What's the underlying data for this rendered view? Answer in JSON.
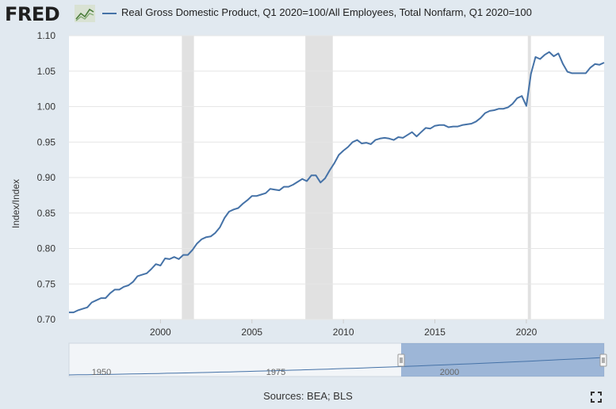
{
  "header": {
    "logo_text": "FRED",
    "legend_label": "Real Gross Domestic Product, Q1 2020=100/All Employees, Total Nonfarm, Q1 2020=100"
  },
  "footer": {
    "sources": "Sources: BEA; BLS"
  },
  "icons": {
    "logo": "fred-chart-icon",
    "fullscreen": "fullscreen-icon"
  },
  "colors": {
    "series": "#4572a7",
    "recession": "#e1e1e1",
    "background": "#e1e9f0",
    "navigator_fill": "#6f93c4"
  },
  "chart_data": {
    "type": "line",
    "title": "Real Gross Domestic Product, Q1 2020=100/All Employees, Total Nonfarm, Q1 2020=100",
    "xlabel": "",
    "ylabel": "Index/Index",
    "xlim": [
      1995,
      2024.25
    ],
    "ylim": [
      0.7,
      1.1
    ],
    "x_ticks": [
      "2000",
      "2005",
      "2010",
      "2015",
      "2020"
    ],
    "y_ticks": [
      "0.70",
      "0.75",
      "0.80",
      "0.85",
      "0.90",
      "0.95",
      "1.00",
      "1.05",
      "1.10"
    ],
    "recessions": [
      [
        2001.17,
        2001.83
      ],
      [
        2007.92,
        2009.42
      ],
      [
        2020.08,
        2020.25
      ]
    ],
    "series": [
      {
        "name": "Real Gross Domestic Product, Q1 2020=100/All Employees, Total Nonfarm, Q1 2020=100",
        "x": [
          1995.0,
          1995.25,
          1995.5,
          1995.75,
          1996.0,
          1996.25,
          1996.5,
          1996.75,
          1997.0,
          1997.25,
          1997.5,
          1997.75,
          1998.0,
          1998.25,
          1998.5,
          1998.75,
          1999.0,
          1999.25,
          1999.5,
          1999.75,
          2000.0,
          2000.25,
          2000.5,
          2000.75,
          2001.0,
          2001.25,
          2001.5,
          2001.75,
          2002.0,
          2002.25,
          2002.5,
          2002.75,
          2003.0,
          2003.25,
          2003.5,
          2003.75,
          2004.0,
          2004.25,
          2004.5,
          2004.75,
          2005.0,
          2005.25,
          2005.5,
          2005.75,
          2006.0,
          2006.25,
          2006.5,
          2006.75,
          2007.0,
          2007.25,
          2007.5,
          2007.75,
          2008.0,
          2008.25,
          2008.5,
          2008.75,
          2009.0,
          2009.25,
          2009.5,
          2009.75,
          2010.0,
          2010.25,
          2010.5,
          2010.75,
          2011.0,
          2011.25,
          2011.5,
          2011.75,
          2012.0,
          2012.25,
          2012.5,
          2012.75,
          2013.0,
          2013.25,
          2013.5,
          2013.75,
          2014.0,
          2014.25,
          2014.5,
          2014.75,
          2015.0,
          2015.25,
          2015.5,
          2015.75,
          2016.0,
          2016.25,
          2016.5,
          2016.75,
          2017.0,
          2017.25,
          2017.5,
          2017.75,
          2018.0,
          2018.25,
          2018.5,
          2018.75,
          2019.0,
          2019.25,
          2019.5,
          2019.75,
          2020.0,
          2020.25,
          2020.5,
          2020.75,
          2021.0,
          2021.25,
          2021.5,
          2021.75,
          2022.0,
          2022.25,
          2022.5,
          2022.75,
          2023.0,
          2023.25,
          2023.5,
          2023.75,
          2024.0,
          2024.25
        ],
        "values": [
          0.71,
          0.71,
          0.713,
          0.715,
          0.717,
          0.724,
          0.727,
          0.73,
          0.73,
          0.737,
          0.742,
          0.742,
          0.746,
          0.748,
          0.753,
          0.761,
          0.763,
          0.765,
          0.771,
          0.778,
          0.776,
          0.786,
          0.785,
          0.788,
          0.785,
          0.791,
          0.791,
          0.798,
          0.807,
          0.813,
          0.816,
          0.817,
          0.822,
          0.83,
          0.843,
          0.852,
          0.855,
          0.857,
          0.863,
          0.868,
          0.874,
          0.874,
          0.876,
          0.878,
          0.884,
          0.883,
          0.882,
          0.887,
          0.887,
          0.89,
          0.894,
          0.898,
          0.895,
          0.903,
          0.903,
          0.893,
          0.899,
          0.91,
          0.92,
          0.932,
          0.938,
          0.943,
          0.95,
          0.953,
          0.948,
          0.949,
          0.947,
          0.953,
          0.955,
          0.956,
          0.955,
          0.953,
          0.957,
          0.956,
          0.96,
          0.964,
          0.958,
          0.964,
          0.97,
          0.969,
          0.973,
          0.974,
          0.974,
          0.971,
          0.972,
          0.972,
          0.974,
          0.975,
          0.976,
          0.979,
          0.984,
          0.991,
          0.994,
          0.995,
          0.997,
          0.997,
          0.999,
          1.004,
          1.012,
          1.015,
          1.001,
          1.046,
          1.07,
          1.067,
          1.073,
          1.077,
          1.071,
          1.075,
          1.06,
          1.049,
          1.047,
          1.047,
          1.047,
          1.047,
          1.055,
          1.06,
          1.059,
          1.062
        ]
      }
    ],
    "navigator": {
      "x_labels": [
        "1950",
        "1975",
        "2000"
      ]
    }
  }
}
